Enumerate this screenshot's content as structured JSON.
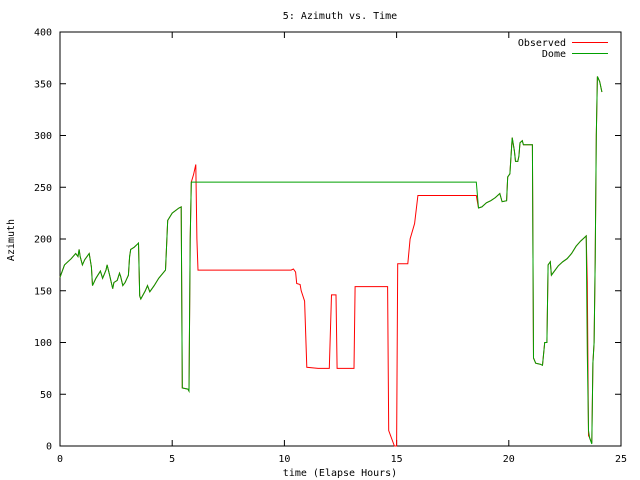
{
  "chart_data": {
    "type": "line",
    "title": "5: Azimuth vs. Time",
    "xlabel": "time (Elapse Hours)",
    "ylabel": "Azimuth",
    "xlim": [
      0,
      25
    ],
    "ylim": [
      0,
      400
    ],
    "xticks": [
      0,
      5,
      10,
      15,
      20,
      25
    ],
    "yticks": [
      0,
      50,
      100,
      150,
      200,
      250,
      300,
      350,
      400
    ],
    "grid": false,
    "legend_position": "top-right",
    "series": [
      {
        "name": "Observed",
        "color": "#ff0000",
        "points": [
          [
            0,
            163
          ],
          [
            0.2,
            175
          ],
          [
            0.5,
            181
          ],
          [
            0.7,
            186
          ],
          [
            0.8,
            183
          ],
          [
            0.85,
            190
          ],
          [
            0.9,
            183
          ],
          [
            1.0,
            175
          ],
          [
            1.1,
            180
          ],
          [
            1.3,
            186
          ],
          [
            1.4,
            173
          ],
          [
            1.45,
            155
          ],
          [
            1.6,
            162
          ],
          [
            1.8,
            169
          ],
          [
            1.9,
            162
          ],
          [
            2.05,
            170
          ],
          [
            2.1,
            175
          ],
          [
            2.2,
            166
          ],
          [
            2.35,
            152
          ],
          [
            2.4,
            158
          ],
          [
            2.55,
            160
          ],
          [
            2.65,
            167
          ],
          [
            2.7,
            164
          ],
          [
            2.8,
            155
          ],
          [
            2.9,
            158
          ],
          [
            3.05,
            165
          ],
          [
            3.1,
            183
          ],
          [
            3.15,
            190
          ],
          [
            3.3,
            192
          ],
          [
            3.45,
            195
          ],
          [
            3.5,
            196
          ],
          [
            3.55,
            145
          ],
          [
            3.6,
            142
          ],
          [
            3.8,
            150
          ],
          [
            3.9,
            155
          ],
          [
            4.0,
            149
          ],
          [
            4.2,
            155
          ],
          [
            4.4,
            162
          ],
          [
            4.7,
            170
          ],
          [
            4.8,
            218
          ],
          [
            5.0,
            225
          ],
          [
            5.3,
            230
          ],
          [
            5.4,
            231
          ],
          [
            5.45,
            56
          ],
          [
            5.7,
            55
          ],
          [
            5.75,
            53
          ],
          [
            5.8,
            200
          ],
          [
            5.85,
            255
          ],
          [
            5.95,
            262
          ],
          [
            6.05,
            272
          ],
          [
            6.1,
            200
          ],
          [
            6.15,
            170
          ],
          [
            7.5,
            170
          ],
          [
            9.0,
            170
          ],
          [
            10.3,
            170
          ],
          [
            10.4,
            171
          ],
          [
            10.5,
            168
          ],
          [
            10.55,
            157
          ],
          [
            10.7,
            156
          ],
          [
            10.75,
            150
          ],
          [
            10.9,
            140
          ],
          [
            11.0,
            76
          ],
          [
            11.5,
            75
          ],
          [
            12.0,
            75
          ],
          [
            12.1,
            146
          ],
          [
            12.3,
            146
          ],
          [
            12.35,
            75
          ],
          [
            12.9,
            75
          ],
          [
            13.1,
            75
          ],
          [
            13.15,
            154
          ],
          [
            14.6,
            154
          ],
          [
            14.65,
            15
          ],
          [
            14.9,
            0
          ],
          [
            15.0,
            0
          ],
          [
            15.05,
            176
          ],
          [
            15.4,
            176
          ],
          [
            15.5,
            176
          ],
          [
            15.6,
            200
          ],
          [
            15.8,
            215
          ],
          [
            15.95,
            242
          ],
          [
            17.5,
            242
          ],
          [
            18.0,
            242
          ],
          [
            18.55,
            242
          ],
          [
            18.65,
            230
          ],
          [
            18.8,
            231
          ],
          [
            19.0,
            235
          ],
          [
            19.2,
            237
          ],
          [
            19.4,
            240
          ],
          [
            19.6,
            244
          ],
          [
            19.7,
            236
          ],
          [
            19.9,
            237
          ],
          [
            19.95,
            260
          ],
          [
            20.05,
            263
          ],
          [
            20.15,
            298
          ],
          [
            20.25,
            285
          ],
          [
            20.3,
            275
          ],
          [
            20.4,
            275
          ],
          [
            20.45,
            280
          ],
          [
            20.5,
            293
          ],
          [
            20.6,
            295
          ],
          [
            20.65,
            291
          ],
          [
            21.05,
            291
          ],
          [
            21.1,
            85
          ],
          [
            21.2,
            80
          ],
          [
            21.4,
            79
          ],
          [
            21.5,
            78
          ],
          [
            21.6,
            100
          ],
          [
            21.7,
            100
          ],
          [
            21.75,
            175
          ],
          [
            21.85,
            178
          ],
          [
            21.9,
            165
          ],
          [
            22.0,
            168
          ],
          [
            22.2,
            174
          ],
          [
            22.4,
            178
          ],
          [
            22.6,
            181
          ],
          [
            22.8,
            186
          ],
          [
            23.0,
            193
          ],
          [
            23.2,
            198
          ],
          [
            23.35,
            201
          ],
          [
            23.45,
            203
          ],
          [
            23.5,
            158
          ],
          [
            23.55,
            10
          ],
          [
            23.6,
            8
          ],
          [
            23.65,
            5
          ],
          [
            23.7,
            4
          ],
          [
            23.75,
            80
          ],
          [
            23.8,
            100
          ],
          [
            23.85,
            180
          ],
          [
            23.9,
            300
          ],
          [
            23.95,
            357
          ],
          [
            24.05,
            352
          ],
          [
            24.15,
            342
          ]
        ]
      },
      {
        "name": "Dome",
        "color": "#00a000",
        "points": [
          [
            0,
            163
          ],
          [
            0.2,
            175
          ],
          [
            0.5,
            181
          ],
          [
            0.7,
            186
          ],
          [
            0.8,
            183
          ],
          [
            0.85,
            190
          ],
          [
            0.9,
            183
          ],
          [
            1.0,
            175
          ],
          [
            1.1,
            180
          ],
          [
            1.3,
            186
          ],
          [
            1.4,
            173
          ],
          [
            1.45,
            155
          ],
          [
            1.6,
            162
          ],
          [
            1.8,
            169
          ],
          [
            1.9,
            162
          ],
          [
            2.05,
            170
          ],
          [
            2.1,
            175
          ],
          [
            2.2,
            166
          ],
          [
            2.35,
            152
          ],
          [
            2.4,
            158
          ],
          [
            2.55,
            160
          ],
          [
            2.65,
            167
          ],
          [
            2.7,
            164
          ],
          [
            2.8,
            155
          ],
          [
            2.9,
            158
          ],
          [
            3.05,
            165
          ],
          [
            3.1,
            183
          ],
          [
            3.15,
            190
          ],
          [
            3.3,
            192
          ],
          [
            3.45,
            195
          ],
          [
            3.5,
            196
          ],
          [
            3.55,
            145
          ],
          [
            3.6,
            142
          ],
          [
            3.8,
            150
          ],
          [
            3.9,
            155
          ],
          [
            4.0,
            149
          ],
          [
            4.2,
            155
          ],
          [
            4.4,
            162
          ],
          [
            4.7,
            170
          ],
          [
            4.8,
            218
          ],
          [
            5.0,
            225
          ],
          [
            5.3,
            230
          ],
          [
            5.4,
            231
          ],
          [
            5.45,
            56
          ],
          [
            5.7,
            55
          ],
          [
            5.75,
            53
          ],
          [
            5.8,
            200
          ],
          [
            5.85,
            255
          ],
          [
            7.5,
            255
          ],
          [
            10.0,
            255
          ],
          [
            12.5,
            255
          ],
          [
            15.0,
            255
          ],
          [
            17.5,
            255
          ],
          [
            18.55,
            255
          ],
          [
            18.65,
            230
          ],
          [
            18.8,
            231
          ],
          [
            19.0,
            235
          ],
          [
            19.2,
            237
          ],
          [
            19.4,
            240
          ],
          [
            19.6,
            244
          ],
          [
            19.7,
            236
          ],
          [
            19.9,
            237
          ],
          [
            19.95,
            260
          ],
          [
            20.05,
            263
          ],
          [
            20.15,
            298
          ],
          [
            20.25,
            285
          ],
          [
            20.3,
            275
          ],
          [
            20.4,
            275
          ],
          [
            20.45,
            280
          ],
          [
            20.5,
            293
          ],
          [
            20.6,
            295
          ],
          [
            20.65,
            291
          ],
          [
            21.05,
            291
          ],
          [
            21.1,
            85
          ],
          [
            21.2,
            80
          ],
          [
            21.4,
            79
          ],
          [
            21.5,
            78
          ],
          [
            21.6,
            100
          ],
          [
            21.7,
            100
          ],
          [
            21.75,
            175
          ],
          [
            21.85,
            178
          ],
          [
            21.9,
            165
          ],
          [
            22.0,
            168
          ],
          [
            22.2,
            174
          ],
          [
            22.4,
            178
          ],
          [
            22.6,
            181
          ],
          [
            22.8,
            186
          ],
          [
            23.0,
            193
          ],
          [
            23.2,
            198
          ],
          [
            23.35,
            201
          ],
          [
            23.45,
            203
          ],
          [
            23.5,
            90
          ],
          [
            23.55,
            15
          ],
          [
            23.6,
            8
          ],
          [
            23.65,
            5
          ],
          [
            23.7,
            2
          ],
          [
            23.75,
            80
          ],
          [
            23.8,
            100
          ],
          [
            23.85,
            180
          ],
          [
            23.9,
            300
          ],
          [
            23.95,
            357
          ],
          [
            24.05,
            352
          ],
          [
            24.15,
            342
          ]
        ]
      }
    ]
  }
}
